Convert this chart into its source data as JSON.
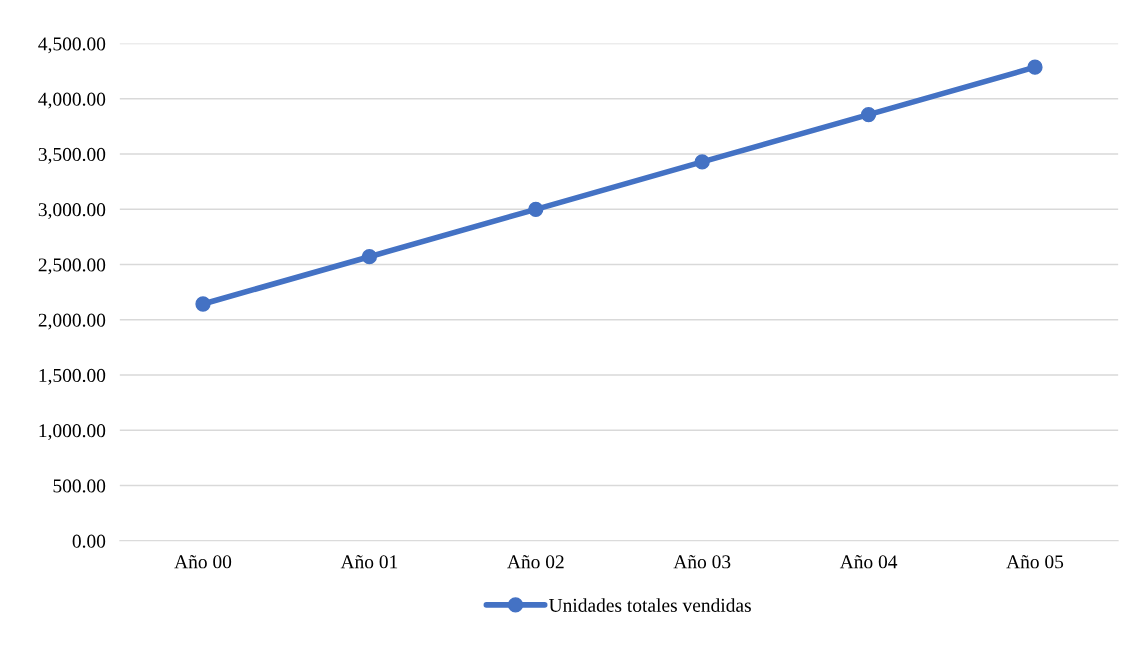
{
  "chart_data": {
    "type": "line",
    "categories": [
      "Año 00",
      "Año 01",
      "Año 02",
      "Año 03",
      "Año 04",
      "Año 05"
    ],
    "series": [
      {
        "name": "Unidades totales vendidas",
        "color": "#4472c4",
        "values": [
          2143,
          2571,
          3000,
          3429,
          3857,
          4286
        ]
      }
    ],
    "ylim": [
      0,
      4500
    ],
    "yticks": [
      {
        "value": 0,
        "label": "0.00"
      },
      {
        "value": 500,
        "label": "500.00"
      },
      {
        "value": 1000,
        "label": "1,000.00"
      },
      {
        "value": 1500,
        "label": "1,500.00"
      },
      {
        "value": 2000,
        "label": "2,000.00"
      },
      {
        "value": 2500,
        "label": "2,500.00"
      },
      {
        "value": 3000,
        "label": "3,000.00"
      },
      {
        "value": 3500,
        "label": "3,500.00"
      },
      {
        "value": 4000,
        "label": "4,000.00"
      },
      {
        "value": 4500,
        "label": "4,500.00"
      }
    ],
    "grid": "y",
    "legend": "bottom",
    "marker": "circle",
    "line_style": "solid"
  }
}
